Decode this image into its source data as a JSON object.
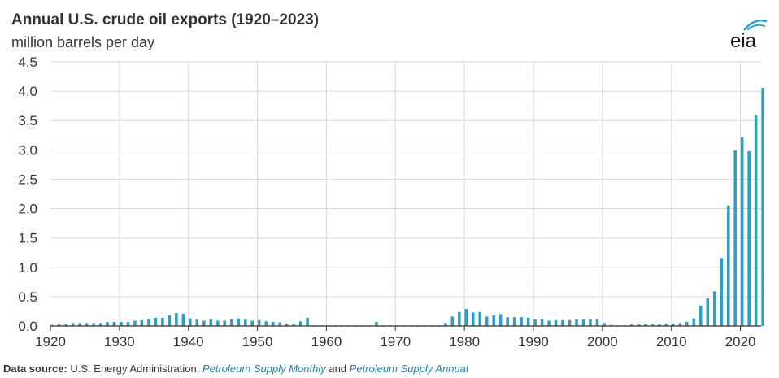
{
  "title": "Annual U.S. crude oil exports (1920–2023)",
  "subtitle": "million barrels per day",
  "logo_text": "eia",
  "source": {
    "lead": "Data source:",
    "agency": "U.S. Energy Administration,",
    "pub1": "Petroleum Supply Monthly",
    "and": "and",
    "pub2": "Petroleum Supply Annual"
  },
  "colors": {
    "bar": "#2d9fc4",
    "grid": "#d9d9d9",
    "axis": "#333333",
    "text": "#333333",
    "link": "#1f7fa8"
  },
  "chart_data": {
    "type": "bar",
    "title": "Annual U.S. crude oil exports (1920–2023)",
    "ylabel": "million barrels per day",
    "xlim": [
      1920,
      2023
    ],
    "ylim": [
      0,
      4.5
    ],
    "yticks": [
      "0.0",
      "0.5",
      "1.0",
      "1.5",
      "2.0",
      "2.5",
      "3.0",
      "3.5",
      "4.0",
      "4.5"
    ],
    "xticks": [
      "1920",
      "1930",
      "1940",
      "1950",
      "1960",
      "1970",
      "1980",
      "1990",
      "2000",
      "2010",
      "2020"
    ],
    "grid": true,
    "start_year": 1920,
    "values": [
      0.02,
      0.03,
      0.03,
      0.05,
      0.05,
      0.05,
      0.05,
      0.05,
      0.07,
      0.07,
      0.07,
      0.07,
      0.09,
      0.1,
      0.12,
      0.14,
      0.14,
      0.18,
      0.22,
      0.21,
      0.13,
      0.11,
      0.09,
      0.11,
      0.09,
      0.09,
      0.12,
      0.13,
      0.11,
      0.09,
      0.1,
      0.08,
      0.07,
      0.06,
      0.04,
      0.03,
      0.08,
      0.14,
      0.01,
      0.01,
      0.01,
      0.01,
      0.01,
      0.01,
      0.01,
      0.01,
      0.01,
      0.07,
      0.01,
      0.01,
      0.01,
      0.01,
      0.01,
      0.01,
      0.01,
      0.01,
      0.01,
      0.05,
      0.16,
      0.24,
      0.29,
      0.23,
      0.24,
      0.16,
      0.18,
      0.2,
      0.15,
      0.15,
      0.15,
      0.14,
      0.11,
      0.12,
      0.09,
      0.1,
      0.1,
      0.1,
      0.11,
      0.11,
      0.11,
      0.12,
      0.05,
      0.02,
      0.01,
      0.01,
      0.03,
      0.03,
      0.03,
      0.03,
      0.03,
      0.04,
      0.04,
      0.05,
      0.07,
      0.13,
      0.35,
      0.47,
      0.59,
      1.16,
      2.05,
      2.99,
      3.22,
      2.98,
      3.59,
      4.06
    ]
  }
}
